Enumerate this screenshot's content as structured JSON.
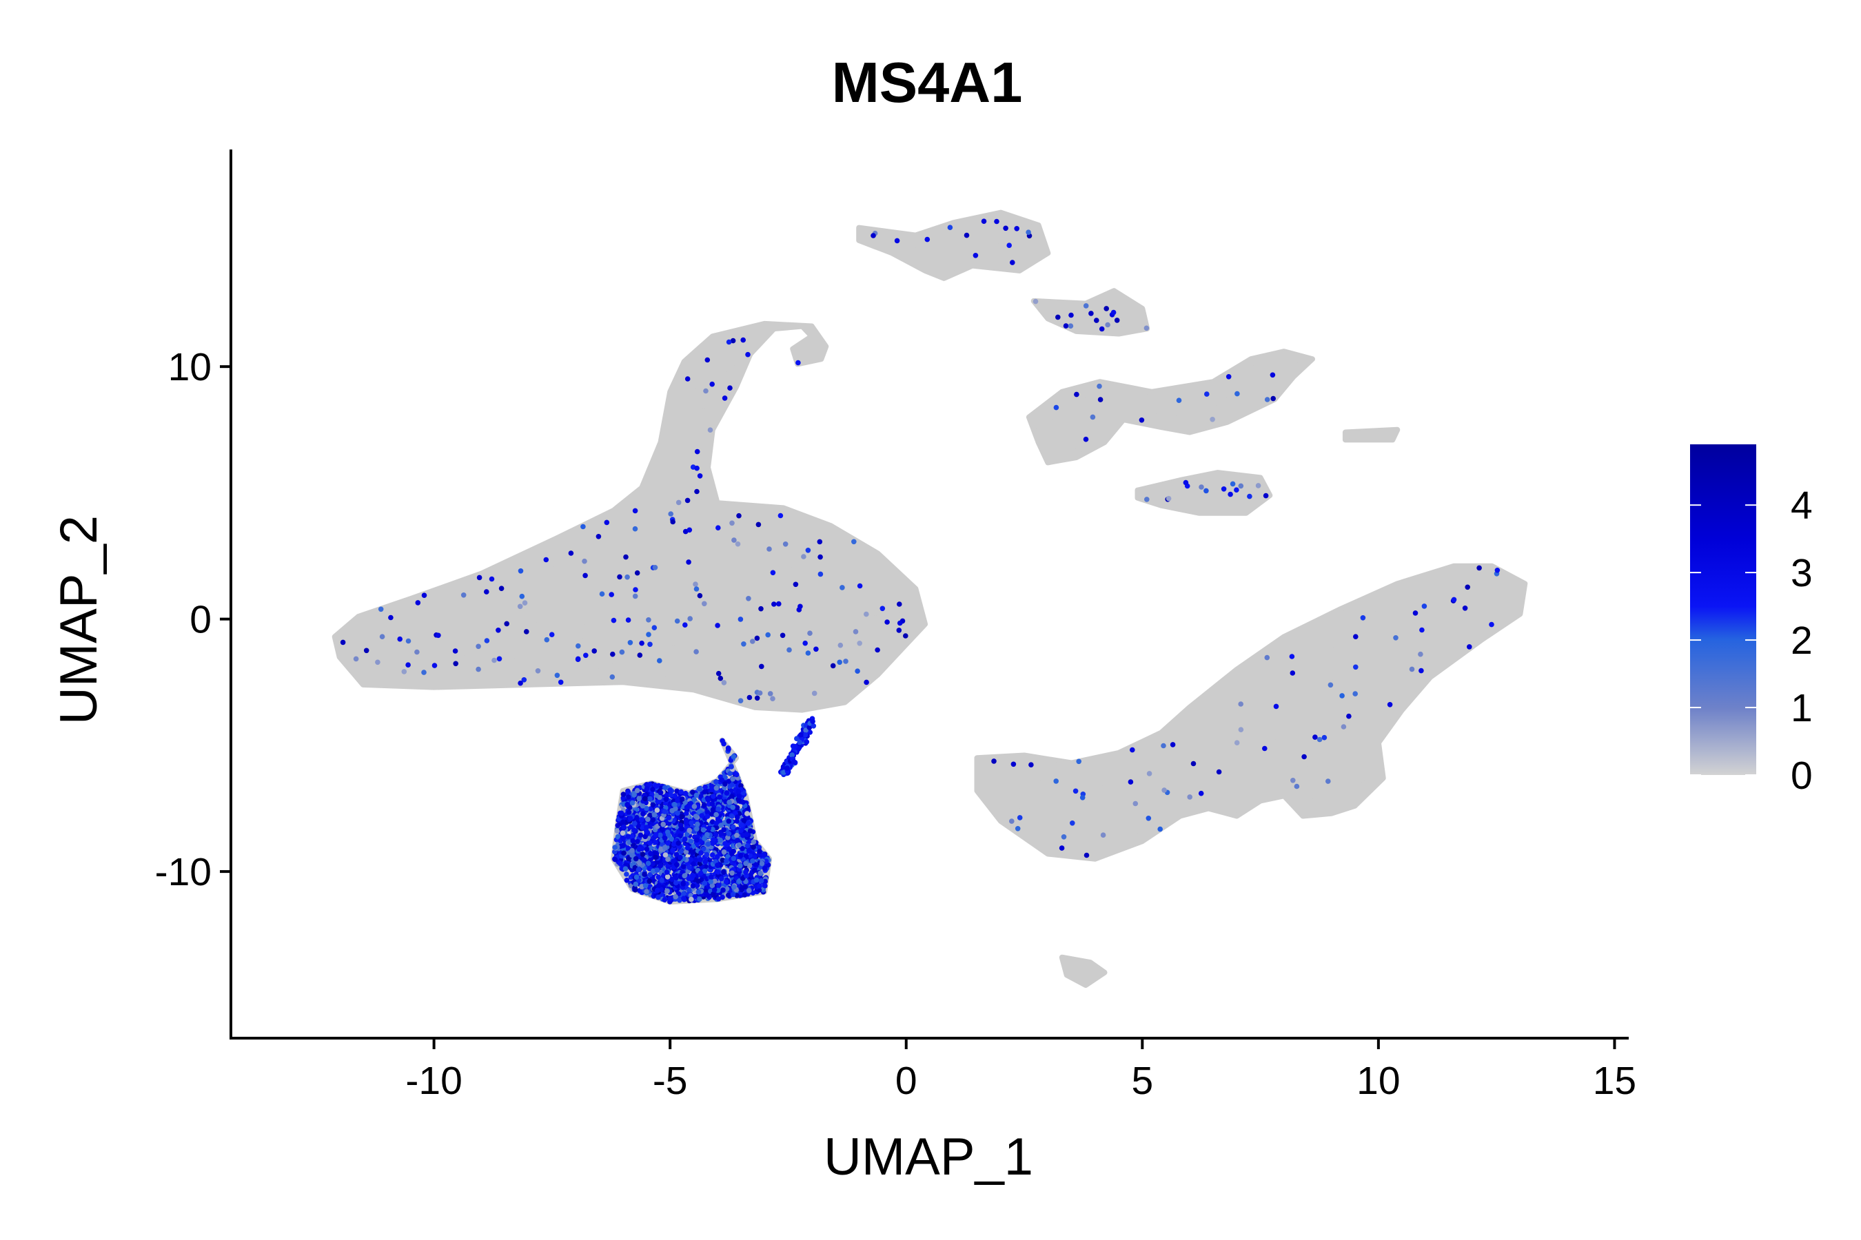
{
  "chart_data": {
    "type": "scatter",
    "title": "MS4A1",
    "xlabel": "UMAP_1",
    "ylabel": "UMAP_2",
    "xlim": [
      -14.3,
      15.3
    ],
    "ylim": [
      -16.6,
      18.6
    ],
    "x_ticks": [
      -10,
      -5,
      0,
      5,
      10,
      15
    ],
    "x_tick_labels": [
      "-10",
      "-5",
      "0",
      "5",
      "10",
      "15"
    ],
    "y_ticks": [
      -10,
      0,
      10
    ],
    "y_tick_labels": [
      "-10",
      "0",
      "10"
    ],
    "grid": false,
    "legend_position": "right",
    "color_scale": {
      "min": 0,
      "max": 4.9,
      "low_color": "#d3d3d3",
      "high_color": "#0000a8",
      "stops": [
        {
          "value": 0,
          "color": "#d3d3d3"
        },
        {
          "value": 1,
          "color": "#6f82c9"
        },
        {
          "value": 2,
          "color": "#2563e0"
        },
        {
          "value": 2.5,
          "color": "#0a14f5"
        },
        {
          "value": 3.5,
          "color": "#0000d8"
        },
        {
          "value": 4.9,
          "color": "#00009e"
        }
      ],
      "ticks": [
        0,
        1,
        2,
        3,
        4
      ],
      "tick_labels": [
        "0",
        "1",
        "2",
        "3",
        "4"
      ]
    },
    "point_color_default": "#cccccc",
    "clusters": [
      {
        "region": "large-left-body",
        "x_range": [
          -12,
          0.5
        ],
        "y_range": [
          -3,
          5
        ],
        "mean_expression": 0.05
      },
      {
        "region": "left-upper-arm",
        "x_range": [
          -5,
          -2
        ],
        "y_range": [
          4,
          12
        ],
        "mean_expression": 0.05
      },
      {
        "region": "b-cell-cluster",
        "x_range": [
          -6,
          -3
        ],
        "y_range": [
          -11,
          -6.5
        ],
        "mean_expression": 2.6
      },
      {
        "region": "right-lower-body",
        "x_range": [
          1.5,
          13
        ],
        "y_range": [
          -9,
          2.5
        ],
        "mean_expression": 0.03
      },
      {
        "region": "top-center-island",
        "x_range": [
          -1,
          3
        ],
        "y_range": [
          13,
          16
        ],
        "mean_expression": 0.02
      },
      {
        "region": "upper-right-islands",
        "x_range": [
          2.5,
          8
        ],
        "y_range": [
          4.5,
          13
        ],
        "mean_expression": 0.03
      },
      {
        "region": "bottom-small-island",
        "x_range": [
          3,
          4.2
        ],
        "y_range": [
          -14.5,
          -13.5
        ],
        "mean_expression": 0.01
      }
    ]
  }
}
